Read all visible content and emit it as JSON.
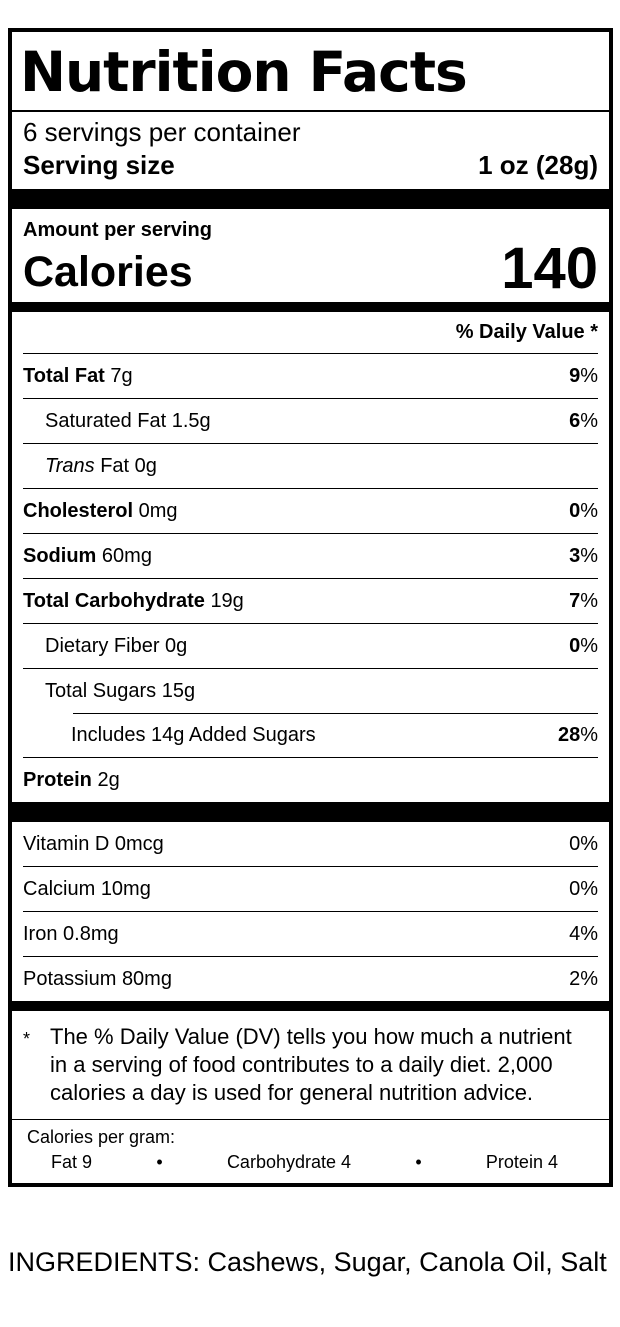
{
  "label": {
    "title": "Nutrition Facts",
    "servings_per_container": "6 servings per container",
    "serving_size_label": "Serving size",
    "serving_size_value": "1 oz (28g)",
    "amount_per_serving": "Amount per serving",
    "calories_label": "Calories",
    "calories_value": "140",
    "daily_value_header": "% Daily Value *",
    "percent_sign": "%",
    "nutrients": [
      {
        "name": "Total Fat",
        "amount": "7g",
        "dv": "9"
      },
      {
        "name": "Saturated Fat",
        "amount": "1.5g",
        "dv": "6"
      },
      {
        "name_italic": "Trans",
        "name": "Fat",
        "amount": "0g"
      },
      {
        "name": "Cholesterol",
        "amount": "0mg",
        "dv": "0"
      },
      {
        "name": "Sodium",
        "amount": "60mg",
        "dv": "3"
      },
      {
        "name": "Total Carbohydrate",
        "amount": "19g",
        "dv": "7"
      },
      {
        "name": "Dietary Fiber",
        "amount": "0g",
        "dv": "0"
      },
      {
        "name": "Total Sugars",
        "amount": "15g"
      },
      {
        "name": "Includes 14g Added Sugars",
        "dv": "28"
      },
      {
        "name": "Protein",
        "amount": "2g"
      }
    ],
    "vitamins": [
      {
        "name": "Vitamin D",
        "amount": "0mcg",
        "dv": "0"
      },
      {
        "name": "Calcium",
        "amount": "10mg",
        "dv": "0"
      },
      {
        "name": "Iron",
        "amount": "0.8mg",
        "dv": "4"
      },
      {
        "name": "Potassium",
        "amount": "80mg",
        "dv": "2"
      }
    ],
    "footnote_marker": "*",
    "footnote_text": "The % Daily Value (DV) tells you how much a nutrient in a serving of food contributes to a daily diet. 2,000 calories a day is used for general nutrition advice.",
    "calories_per_gram": {
      "label": "Calories per gram:",
      "fat": "Fat 9",
      "bullet": "•",
      "carbohydrate": "Carbohydrate 4",
      "protein": "Protein 4"
    }
  },
  "ingredients": "INGREDIENTS: Cashews, Sugar, Canola Oil, Salt"
}
